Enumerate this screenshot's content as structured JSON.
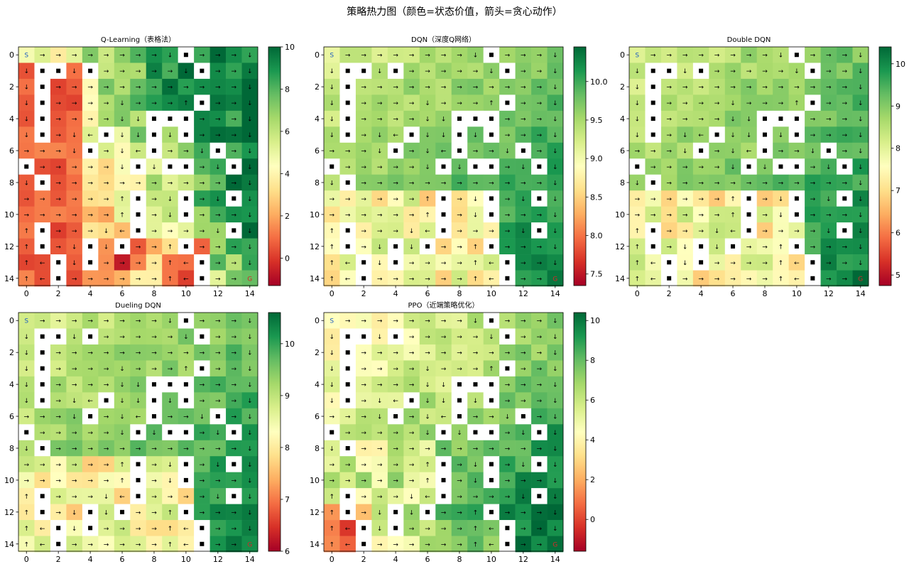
{
  "figure_title": "策略热力图（颜色=状态价值，箭头=贪心动作）",
  "colormap": [
    "#a50026",
    "#d73027",
    "#f46d43",
    "#fdae61",
    "#fee08b",
    "#ffffbf",
    "#d9ef8b",
    "#a6d96a",
    "#66bd63",
    "#1a9850",
    "#006837"
  ],
  "wall_color": "#ffffff",
  "wall_marker_color": "#000000",
  "start_color": "#1f5fbf",
  "goal_color": "#d62728",
  "chart_data": [
    {
      "type": "heatmap",
      "title": "Q-Learning（表格法）",
      "grid_size": 15,
      "xticks": [
        0,
        2,
        4,
        6,
        8,
        10,
        12,
        14
      ],
      "yticks": [
        0,
        2,
        4,
        6,
        8,
        10,
        12,
        14
      ],
      "value_range": [
        -1.3,
        10.0
      ],
      "colorbar_ticks": [
        0,
        2,
        4,
        6,
        8,
        10
      ],
      "start_label": "S",
      "goal_label": "G"
    },
    {
      "type": "heatmap",
      "title": "DQN（深度Q网络）",
      "grid_size": 15,
      "xticks": [
        0,
        2,
        4,
        6,
        8,
        10,
        12,
        14
      ],
      "yticks": [
        0,
        2,
        4,
        6,
        8,
        10,
        12,
        14
      ],
      "value_range": [
        7.35,
        10.45
      ],
      "colorbar_ticks": [
        7.5,
        8.0,
        8.5,
        9.0,
        9.5,
        10.0
      ],
      "colorbar_tick_labels": [
        "7.5",
        "8.0",
        "8.5",
        "9.0",
        "9.5",
        "10.0"
      ],
      "start_label": "S",
      "goal_label": "G"
    },
    {
      "type": "heatmap",
      "title": "Double DQN",
      "grid_size": 15,
      "xticks": [
        0,
        2,
        4,
        6,
        8,
        10,
        12,
        14
      ],
      "yticks": [
        0,
        2,
        4,
        6,
        8,
        10,
        12,
        14
      ],
      "value_range": [
        4.75,
        10.4
      ],
      "colorbar_ticks": [
        5,
        6,
        7,
        8,
        9,
        10
      ],
      "start_label": "S",
      "goal_label": "G"
    },
    {
      "type": "heatmap",
      "title": "Dueling DQN",
      "grid_size": 15,
      "xticks": [
        0,
        2,
        4,
        6,
        8,
        10,
        12,
        14
      ],
      "yticks": [
        0,
        2,
        4,
        6,
        8,
        10,
        12,
        14
      ],
      "value_range": [
        6.0,
        10.6
      ],
      "colorbar_ticks": [
        6,
        7,
        8,
        9,
        10
      ],
      "start_label": "S",
      "goal_label": "G"
    },
    {
      "type": "heatmap",
      "title": "PPO（近端策略优化）",
      "grid_size": 15,
      "xticks": [
        0,
        2,
        4,
        6,
        8,
        10,
        12,
        14
      ],
      "yticks": [
        0,
        2,
        4,
        6,
        8,
        10,
        12,
        14
      ],
      "value_range": [
        -1.6,
        10.4
      ],
      "colorbar_ticks": [
        0,
        2,
        4,
        6,
        8,
        10
      ],
      "start_label": "S",
      "goal_label": "G"
    }
  ]
}
